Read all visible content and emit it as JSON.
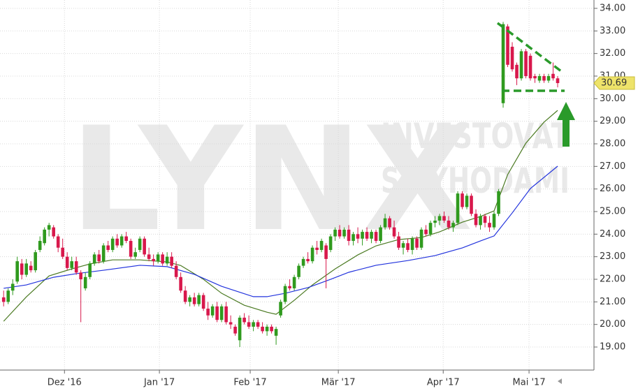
{
  "chart_data": {
    "type": "candlestick",
    "watermark": {
      "logo": "LYNX",
      "line1": "INVESTOVAT",
      "line2": "S VÝHODAMI"
    },
    "xlim": [
      -0.8,
      130
    ],
    "xticks": [
      {
        "value": 13.4,
        "label": "Dez '16"
      },
      {
        "value": 34.3,
        "label": "Jan '17"
      },
      {
        "value": 54.3,
        "label": "Feb '17"
      },
      {
        "value": 73.7,
        "label": "Mär '17"
      },
      {
        "value": 96.8,
        "label": "Apr '17"
      },
      {
        "value": 115.7,
        "label": "Mai '17"
      }
    ],
    "ylim": [
      17.98,
      34.37
    ],
    "yticks": [
      {
        "value": 19,
        "label": "19.00"
      },
      {
        "value": 20,
        "label": "20.00"
      },
      {
        "value": 21,
        "label": "21.00"
      },
      {
        "value": 22,
        "label": "22.00"
      },
      {
        "value": 23,
        "label": "23.00"
      },
      {
        "value": 24,
        "label": "24.00"
      },
      {
        "value": 25,
        "label": "25.00"
      },
      {
        "value": 26,
        "label": "26.00"
      },
      {
        "value": 27,
        "label": "27.00"
      },
      {
        "value": 28,
        "label": "28.00"
      },
      {
        "value": 29,
        "label": "29.00"
      },
      {
        "value": 30,
        "label": "30.00"
      },
      {
        "value": 31,
        "label": "31.00"
      },
      {
        "value": 32,
        "label": "32.00"
      },
      {
        "value": 33,
        "label": "33.00"
      },
      {
        "value": 34,
        "label": "34.00"
      }
    ],
    "grid": true,
    "up_color": "#2f9a1e",
    "down_color": "#d8184c",
    "open": [
      21.2,
      21.0,
      21.5,
      21.9,
      22.7,
      22.2,
      22.6,
      22.4,
      23.3,
      23.6,
      24.2,
      24.3,
      23.9,
      23.4,
      23.0,
      22.5,
      22.8,
      22.3,
      21.6,
      22.1,
      22.7,
      23.1,
      22.8,
      23.5,
      23.3,
      23.8,
      23.5,
      23.9,
      23.7,
      23.0,
      23.3,
      23.8,
      23.1,
      22.9,
      22.8,
      23.1,
      22.7,
      23.0,
      22.6,
      22.1,
      21.5,
      21.0,
      21.2,
      20.9,
      21.3,
      20.7,
      20.4,
      20.8,
      20.2,
      20.8,
      20.1,
      19.9,
      19.3,
      20.3,
      20.1,
      19.9,
      20.1,
      19.9,
      19.7,
      19.9,
      19.5,
      20.4,
      21.0,
      21.7,
      21.6,
      22.1,
      22.6,
      22.9,
      22.8,
      23.4,
      23.3,
      23.5,
      23.3,
      23.9,
      24.2,
      23.9,
      24.2,
      23.7,
      24.0,
      23.8,
      24.1,
      23.8,
      24.1,
      23.7,
      24.3,
      24.7,
      24.3,
      23.9,
      23.4,
      23.6,
      23.3,
      23.8,
      23.4,
      24.2,
      24.0,
      24.5,
      24.6,
      24.8,
      24.6,
      24.3,
      24.5,
      25.8,
      25.2,
      25.7,
      24.9,
      24.4,
      24.8,
      24.5,
      24.3,
      24.9,
      29.8,
      33.2,
      32.3,
      31.5,
      30.9,
      32.1,
      31.9,
      31.0,
      30.8,
      31.0,
      30.8,
      31.1,
      30.9
    ],
    "high": [
      21.5,
      21.6,
      22.0,
      23.0,
      22.9,
      22.9,
      22.8,
      23.3,
      23.9,
      24.3,
      24.5,
      24.4,
      24.0,
      23.8,
      23.2,
      23.0,
      23.0,
      22.4,
      22.3,
      22.8,
      23.2,
      23.3,
      23.6,
      23.7,
      23.9,
      24.0,
      24.0,
      24.1,
      23.8,
      23.4,
      23.9,
      23.9,
      23.4,
      23.1,
      23.2,
      23.2,
      23.2,
      23.2,
      22.8,
      22.3,
      21.7,
      21.3,
      21.4,
      21.4,
      21.4,
      21.0,
      20.9,
      21.0,
      20.9,
      21.0,
      20.4,
      20.0,
      20.4,
      20.5,
      20.4,
      20.2,
      20.2,
      20.1,
      20.0,
      20.0,
      19.9,
      21.1,
      21.8,
      22.0,
      22.2,
      22.7,
      23.0,
      23.2,
      23.5,
      23.7,
      23.8,
      23.6,
      24.0,
      24.3,
      24.4,
      24.3,
      24.4,
      24.1,
      24.3,
      24.2,
      24.3,
      24.2,
      24.2,
      24.4,
      24.9,
      24.8,
      24.6,
      24.1,
      23.7,
      23.8,
      23.9,
      23.9,
      24.3,
      24.4,
      24.6,
      24.8,
      24.9,
      25.0,
      24.8,
      24.6,
      25.9,
      25.9,
      25.8,
      25.8,
      25.1,
      24.9,
      24.9,
      24.8,
      25.0,
      26.0,
      33.4,
      33.3,
      32.5,
      31.6,
      32.2,
      32.2,
      32.0,
      31.1,
      31.1,
      31.1,
      31.1,
      31.6,
      31.0
    ],
    "low": [
      20.8,
      20.9,
      21.3,
      21.8,
      22.0,
      22.1,
      22.3,
      22.3,
      23.2,
      23.5,
      23.9,
      23.8,
      23.2,
      22.9,
      22.4,
      22.4,
      22.2,
      20.1,
      21.5,
      22.0,
      22.6,
      22.7,
      22.7,
      23.2,
      23.2,
      23.4,
      23.4,
      23.6,
      22.9,
      22.9,
      23.2,
      23.0,
      22.8,
      22.6,
      22.7,
      22.6,
      22.6,
      22.5,
      22.0,
      21.4,
      20.9,
      20.8,
      20.8,
      20.8,
      20.6,
      20.2,
      20.3,
      20.1,
      20.1,
      20.0,
      19.8,
      19.5,
      19.0,
      20.0,
      19.8,
      19.7,
      19.8,
      19.6,
      19.5,
      19.6,
      19.1,
      20.3,
      20.9,
      21.5,
      21.5,
      22.0,
      22.5,
      22.7,
      22.7,
      23.1,
      23.2,
      21.6,
      23.2,
      23.7,
      23.8,
      23.8,
      23.5,
      23.5,
      23.6,
      23.5,
      23.7,
      23.6,
      23.6,
      23.6,
      24.2,
      24.2,
      23.8,
      23.3,
      23.1,
      23.2,
      23.1,
      23.3,
      23.3,
      23.9,
      23.9,
      24.3,
      24.4,
      24.5,
      24.2,
      24.1,
      24.4,
      25.1,
      25.1,
      24.8,
      24.3,
      24.2,
      24.3,
      24.1,
      24.2,
      24.8,
      29.6,
      31.4,
      31.2,
      30.6,
      30.8,
      30.9,
      30.8,
      30.7,
      30.7,
      30.7,
      30.7,
      30.8,
      30.5
    ],
    "close": [
      21.0,
      21.5,
      21.8,
      22.8,
      22.2,
      22.7,
      22.4,
      23.2,
      23.7,
      24.2,
      24.4,
      23.9,
      23.4,
      23.0,
      22.5,
      22.8,
      22.3,
      22.0,
      22.1,
      22.7,
      23.1,
      22.8,
      23.5,
      23.3,
      23.8,
      23.5,
      23.9,
      23.7,
      23.0,
      23.2,
      23.8,
      23.1,
      22.9,
      22.8,
      23.1,
      22.7,
      23.0,
      22.6,
      22.1,
      21.5,
      21.0,
      21.2,
      20.9,
      21.3,
      20.7,
      20.4,
      20.8,
      20.2,
      20.8,
      20.1,
      20.0,
      19.6,
      20.3,
      20.1,
      19.9,
      20.1,
      19.9,
      19.7,
      19.9,
      19.7,
      19.8,
      21.0,
      21.7,
      21.6,
      22.1,
      22.6,
      22.9,
      22.8,
      23.4,
      23.3,
      23.7,
      22.9,
      23.9,
      24.2,
      23.9,
      24.2,
      23.7,
      24.0,
      23.8,
      24.1,
      23.8,
      24.1,
      23.7,
      24.3,
      24.7,
      24.3,
      23.9,
      23.4,
      23.6,
      23.3,
      23.8,
      23.4,
      24.2,
      24.0,
      24.5,
      24.6,
      24.8,
      24.6,
      24.3,
      24.5,
      25.8,
      25.2,
      25.7,
      24.9,
      24.4,
      24.8,
      24.5,
      24.3,
      24.9,
      25.9,
      33.3,
      31.5,
      31.3,
      30.9,
      32.1,
      31.0,
      30.9,
      30.9,
      31.0,
      30.8,
      31.0,
      30.9,
      30.69
    ],
    "series": [
      {
        "color": "#4b7a22",
        "x": [
          0,
          5,
          10,
          15,
          19,
          24,
          30,
          36,
          39,
          44,
          48,
          53,
          58,
          60,
          64,
          68,
          73,
          78,
          82,
          87,
          92,
          96,
          101,
          105,
          108,
          111,
          115,
          119,
          122
        ],
        "values": [
          20.14,
          21.22,
          22.15,
          22.46,
          22.68,
          22.86,
          22.86,
          22.77,
          22.61,
          22.0,
          21.38,
          20.85,
          20.54,
          20.45,
          21.07,
          21.75,
          22.46,
          23.08,
          23.48,
          23.76,
          23.85,
          24.1,
          24.53,
          24.78,
          25.03,
          26.64,
          28.03,
          28.96,
          29.48
        ]
      },
      {
        "color": "#2233dd",
        "x": [
          0,
          5,
          11,
          16,
          22,
          30,
          36,
          42,
          48,
          55,
          58,
          62,
          67,
          72,
          76,
          82,
          89,
          95,
          101,
          105,
          108,
          112,
          116,
          122
        ],
        "values": [
          21.6,
          21.75,
          22.09,
          22.25,
          22.4,
          22.62,
          22.56,
          22.22,
          21.69,
          21.23,
          21.23,
          21.38,
          21.63,
          22.0,
          22.31,
          22.62,
          22.83,
          23.05,
          23.39,
          23.7,
          23.92,
          24.94,
          26.02,
          27.01
        ]
      }
    ]
  }
}
